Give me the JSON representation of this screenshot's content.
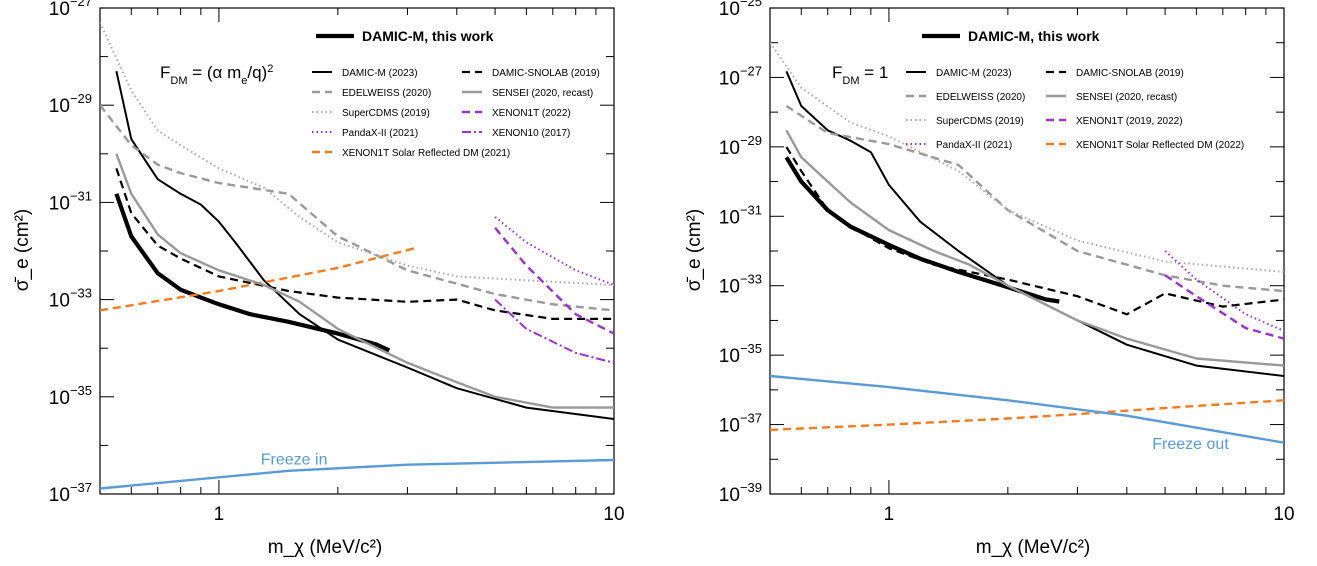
{
  "chart_data": [
    {
      "type": "line",
      "xlabel": "m_χ (MeV/c²)",
      "ylabel": "σ̄_e (cm²)",
      "xscale": "log",
      "yscale": "log",
      "xlim": [
        0.5,
        10
      ],
      "ylim": [
        1e-37,
        1e-27
      ],
      "x_ticks": [
        {
          "v": 1,
          "label": "1"
        },
        {
          "v": 10,
          "label": "10"
        }
      ],
      "y_ticks": [
        {
          "v": 1e-37,
          "exp": "−37"
        },
        {
          "v": 1e-35,
          "exp": "−35"
        },
        {
          "v": 1e-33,
          "exp": "−33"
        },
        {
          "v": 1e-31,
          "exp": "−31"
        },
        {
          "v": 1e-29,
          "exp": "−29"
        },
        {
          "v": 1e-27,
          "exp": "−27"
        }
      ],
      "form_factor": {
        "pre": "F",
        "sub": "DM",
        "mid": " = (α m",
        "sub2": "e",
        "post": "/q)",
        "sup": "2"
      },
      "legend_headline": "DAMIC-M, this work",
      "legend_position": "top-right",
      "annotation": {
        "text": "Freeze in",
        "x": 1.55,
        "y": 4e-37,
        "color": "#5b9bd5"
      },
      "series": [
        {
          "name": "DAMIC-M, this work",
          "color": "#000000",
          "width": 4.2,
          "dash": "",
          "x": [
            0.55,
            0.6,
            0.7,
            0.8,
            0.9,
            1.0,
            1.2,
            1.5,
            2.0,
            2.5,
            2.7
          ],
          "y": [
            1.5e-31,
            2e-32,
            3.5e-33,
            1.6e-33,
            1.1e-33,
            8e-34,
            5e-34,
            3.5e-34,
            2e-34,
            1.2e-34,
            9e-35
          ]
        },
        {
          "name": "DAMIC-M (2023)",
          "color": "#000000",
          "width": 2,
          "dash": "",
          "x": [
            0.55,
            0.6,
            0.7,
            0.8,
            0.9,
            1.0,
            1.1,
            1.3,
            1.6,
            2.0,
            3.0,
            4.0,
            6.0,
            10.0
          ],
          "y": [
            5e-29,
            2e-30,
            3e-31,
            1.5e-31,
            9e-32,
            4e-32,
            1.5e-32,
            2.5e-33,
            5e-34,
            1.5e-34,
            4e-35,
            1.5e-35,
            6e-36,
            3.5e-36
          ]
        },
        {
          "name": "EDELWEISS (2020)",
          "color": "#999999",
          "width": 2.4,
          "dash": "8,5",
          "x": [
            0.5,
            0.6,
            0.7,
            0.8,
            1.0,
            1.2,
            1.5,
            2.0,
            3.0,
            5.0,
            7.0,
            10.0
          ],
          "y": [
            1e-29,
            1.5e-30,
            6e-31,
            4e-31,
            2.5e-31,
            2e-31,
            1.5e-31,
            2e-32,
            4e-33,
            1.3e-33,
            8e-34,
            6e-34
          ]
        },
        {
          "name": "SuperCDMS (2019)",
          "color": "#aaaaaa",
          "width": 2,
          "dash": "1.5,3",
          "x": [
            0.5,
            0.6,
            0.7,
            0.8,
            1.0,
            1.3,
            1.6,
            2.0,
            3.0,
            4.0,
            6.0,
            10.0
          ],
          "y": [
            5e-28,
            2e-29,
            3e-30,
            1.5e-30,
            5e-31,
            2e-31,
            5e-32,
            1.5e-32,
            5e-33,
            3e-33,
            2.5e-33,
            2e-33
          ]
        },
        {
          "name": "PandaX-II (2021)",
          "color": "#9933cc",
          "width": 2,
          "dash": "1.5,3",
          "x": [
            5.0,
            6.0,
            8.0,
            10.0
          ],
          "y": [
            5e-32,
            1.5e-32,
            4e-33,
            2e-33
          ]
        },
        {
          "name": "XENON1T Solar Reflected DM (2021)",
          "color": "#f47c20",
          "width": 2.4,
          "dash": "8,5",
          "x": [
            0.5,
            1.0,
            2.0,
            3.2
          ],
          "y": [
            6e-34,
            1.5e-33,
            4.5e-33,
            1.2e-32
          ]
        },
        {
          "name": "DAMIC-SNOLAB (2019)",
          "color": "#000000",
          "width": 2.2,
          "dash": "8,5",
          "x": [
            0.55,
            0.6,
            0.7,
            0.8,
            1.0,
            1.5,
            2.0,
            3.0,
            4.0,
            5.0,
            7.0,
            10.0
          ],
          "y": [
            5e-31,
            6e-32,
            1.3e-32,
            7e-33,
            3e-33,
            1.5e-33,
            1.1e-33,
            9e-34,
            1e-33,
            6e-34,
            4e-34,
            4e-34
          ]
        },
        {
          "name": "SENSEI (2020, recast)",
          "color": "#999999",
          "width": 2.4,
          "dash": "",
          "x": [
            0.55,
            0.6,
            0.7,
            0.8,
            1.0,
            1.3,
            1.6,
            2.0,
            3.0,
            4.0,
            5.0,
            7.0,
            10.0
          ],
          "y": [
            1e-30,
            1.5e-31,
            2.2e-32,
            9e-33,
            4e-33,
            2e-33,
            9e-34,
            2.5e-34,
            5e-35,
            2e-35,
            1e-35,
            6e-36,
            6e-36
          ]
        },
        {
          "name": "XENON1T (2022)",
          "color": "#9933cc",
          "width": 2.4,
          "dash": "8,5",
          "x": [
            5.0,
            6.0,
            8.0,
            10.0
          ],
          "y": [
            3e-32,
            5e-33,
            5e-34,
            2e-34
          ]
        },
        {
          "name": "XENON10 (2017)",
          "color": "#9933cc",
          "width": 2,
          "dash": "9,3,2,3",
          "x": [
            5.0,
            6.0,
            8.0,
            10.0
          ],
          "y": [
            1e-33,
            2.5e-34,
            8e-35,
            5e-35
          ]
        },
        {
          "name": "",
          "color": "#5b9bd5",
          "width": 2.4,
          "dash": "",
          "x": [
            0.5,
            1.5,
            3.0,
            10.0
          ],
          "y": [
            1.3e-37,
            3e-37,
            4e-37,
            5e-37
          ]
        }
      ]
    },
    {
      "type": "line",
      "xlabel": "m_χ (MeV/c²)",
      "ylabel": "σ̄_e (cm²)",
      "xscale": "log",
      "yscale": "log",
      "xlim": [
        0.5,
        10
      ],
      "ylim": [
        1e-39,
        1e-25
      ],
      "x_ticks": [
        {
          "v": 1,
          "label": "1"
        },
        {
          "v": 10,
          "label": "10"
        }
      ],
      "y_ticks": [
        {
          "v": 1e-39,
          "exp": "−39"
        },
        {
          "v": 1e-37,
          "exp": "−37"
        },
        {
          "v": 1e-35,
          "exp": "−35"
        },
        {
          "v": 1e-33,
          "exp": "−33"
        },
        {
          "v": 1e-31,
          "exp": "−31"
        },
        {
          "v": 1e-29,
          "exp": "−29"
        },
        {
          "v": 1e-27,
          "exp": "−27"
        },
        {
          "v": 1e-25,
          "exp": "−25"
        }
      ],
      "form_factor": {
        "pre": "F",
        "sub": "DM",
        "mid": " = 1",
        "sub2": "",
        "post": "",
        "sup": ""
      },
      "legend_headline": "DAMIC-M, this work",
      "legend_position": "top-right",
      "annotation": {
        "text": "Freeze out",
        "x": 5.8,
        "y": 2e-38,
        "color": "#5b9bd5"
      },
      "series": [
        {
          "name": "DAMIC-M, this work",
          "color": "#000000",
          "width": 4.2,
          "dash": "",
          "x": [
            0.55,
            0.6,
            0.7,
            0.8,
            1.0,
            1.2,
            1.5,
            2.0,
            2.5,
            2.7
          ],
          "y": [
            5e-30,
            1e-30,
            1.5e-31,
            5e-32,
            1.5e-32,
            6e-33,
            2.5e-33,
            9e-34,
            4e-34,
            3.5e-34
          ]
        },
        {
          "name": "DAMIC-M (2023)",
          "color": "#000000",
          "width": 2,
          "dash": "",
          "x": [
            0.55,
            0.6,
            0.7,
            0.8,
            0.9,
            1.0,
            1.2,
            1.5,
            2.0,
            3.0,
            4.0,
            6.0,
            10.0
          ],
          "y": [
            1.5e-27,
            1.5e-28,
            3e-29,
            1.5e-29,
            7e-30,
            8e-31,
            7e-32,
            1e-32,
            1e-33,
            1e-34,
            2e-35,
            5e-36,
            2.5e-36
          ]
        },
        {
          "name": "EDELWEISS (2020)",
          "color": "#999999",
          "width": 2.4,
          "dash": "8,5",
          "x": [
            0.55,
            0.7,
            1.0,
            1.5,
            2.0,
            3.0,
            5.0,
            7.0,
            10.0
          ],
          "y": [
            1.5e-28,
            2.5e-29,
            1.2e-29,
            3e-30,
            1.5e-31,
            1e-32,
            2e-33,
            1e-33,
            7e-34
          ]
        },
        {
          "name": "SuperCDMS (2019)",
          "color": "#aaaaaa",
          "width": 2,
          "dash": "1.5,3",
          "x": [
            0.5,
            0.6,
            0.8,
            1.0,
            1.5,
            2.0,
            3.0,
            5.0,
            10.0
          ],
          "y": [
            1e-26,
            5e-28,
            5e-29,
            2e-29,
            2e-30,
            1.5e-31,
            2e-32,
            5e-33,
            2.5e-33
          ]
        },
        {
          "name": "PandaX-II (2021)",
          "color": "#9933cc",
          "width": 2,
          "dash": "1.5,3",
          "x": [
            5.0,
            6.0,
            8.0,
            10.0
          ],
          "y": [
            1e-32,
            1.5e-33,
            1.5e-34,
            5e-35
          ]
        },
        {
          "name": "DAMIC-SNOLAB (2019)",
          "color": "#000000",
          "width": 2.2,
          "dash": "8,5",
          "x": [
            0.55,
            0.6,
            0.7,
            0.8,
            1.0,
            1.3,
            1.6,
            2.0,
            3.0,
            4.0,
            5.0,
            7.0,
            10.0
          ],
          "y": [
            1e-29,
            2e-30,
            1.5e-31,
            5e-32,
            1.2e-32,
            4e-33,
            2.5e-33,
            1.5e-33,
            5e-34,
            1.5e-34,
            6e-34,
            2.5e-34,
            4e-34
          ]
        },
        {
          "name": "SENSEI (2020, recast)",
          "color": "#999999",
          "width": 2.4,
          "dash": "",
          "x": [
            0.55,
            0.6,
            0.7,
            0.8,
            1.0,
            1.3,
            1.6,
            2.0,
            3.0,
            4.0,
            6.0,
            10.0
          ],
          "y": [
            3e-29,
            5e-30,
            1e-30,
            2.5e-31,
            4e-32,
            1e-32,
            4e-33,
            1e-33,
            1e-34,
            3e-35,
            8e-36,
            5e-36
          ]
        },
        {
          "name": "XENON1T (2019, 2022)",
          "color": "#9933cc",
          "width": 2.4,
          "dash": "8,5",
          "x": [
            5.0,
            6.0,
            8.0,
            10.0
          ],
          "y": [
            2e-33,
            5e-34,
            6e-35,
            3e-35
          ]
        },
        {
          "name": "XENON1T Solar Reflected DM (2022)",
          "color": "#f47c20",
          "width": 2.4,
          "dash": "8,5",
          "x": [
            0.5,
            1.0,
            2.0,
            3.0,
            5.0,
            10.0
          ],
          "y": [
            7e-38,
            1e-37,
            1.5e-37,
            2e-37,
            3e-37,
            5e-37
          ]
        },
        {
          "name": "",
          "color": "#5b9bd5",
          "width": 2.4,
          "dash": "",
          "x": [
            0.5,
            1.0,
            2.0,
            4.0,
            10.0
          ],
          "y": [
            2.5e-36,
            1.2e-36,
            5e-37,
            1.8e-37,
            3e-38
          ]
        }
      ]
    }
  ]
}
